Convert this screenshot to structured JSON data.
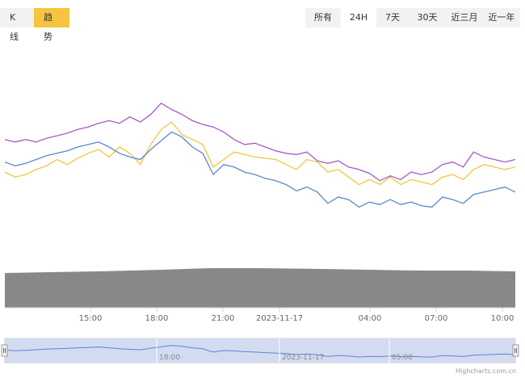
{
  "view_toggle": {
    "kline_label": "K线",
    "trend_label": "趋势",
    "active": "趋势",
    "active_color": "#f5c440"
  },
  "range_selector": {
    "options": [
      "所有",
      "24H",
      "7天",
      "30天",
      "近三月",
      "近一年"
    ],
    "selected": "24H"
  },
  "credit": "Highcharts.com.cn",
  "chart_data": {
    "type": "line",
    "x_ticks": [
      "15:00",
      "18:00",
      "21:00",
      "2023-11-17",
      "04:00",
      "07:00",
      "10:00"
    ],
    "navigator_ticks": [
      "18:00",
      "2023-11-17",
      "05:00"
    ],
    "grid": false,
    "series": [
      {
        "color": "#a559c8",
        "values": [
          0.66,
          0.64,
          0.66,
          0.64,
          0.67,
          0.69,
          0.71,
          0.74,
          0.76,
          0.79,
          0.81,
          0.79,
          0.84,
          0.8,
          0.86,
          0.95,
          0.9,
          0.86,
          0.81,
          0.78,
          0.76,
          0.72,
          0.66,
          0.62,
          0.63,
          0.6,
          0.57,
          0.55,
          0.54,
          0.56,
          0.49,
          0.47,
          0.49,
          0.44,
          0.42,
          0.39,
          0.33,
          0.37,
          0.34,
          0.4,
          0.38,
          0.4,
          0.46,
          0.48,
          0.44,
          0.56,
          0.52,
          0.5,
          0.48,
          0.5
        ]
      },
      {
        "color": "#f5c440",
        "values": [
          0.4,
          0.36,
          0.38,
          0.42,
          0.45,
          0.5,
          0.46,
          0.51,
          0.55,
          0.58,
          0.52,
          0.6,
          0.55,
          0.46,
          0.62,
          0.74,
          0.8,
          0.7,
          0.66,
          0.62,
          0.44,
          0.5,
          0.56,
          0.54,
          0.52,
          0.51,
          0.5,
          0.46,
          0.42,
          0.5,
          0.48,
          0.4,
          0.42,
          0.36,
          0.3,
          0.34,
          0.3,
          0.36,
          0.3,
          0.34,
          0.32,
          0.3,
          0.36,
          0.38,
          0.34,
          0.42,
          0.46,
          0.44,
          0.42,
          0.44
        ]
      },
      {
        "color": "#5b87d0",
        "values": [
          0.48,
          0.45,
          0.47,
          0.5,
          0.53,
          0.55,
          0.57,
          0.6,
          0.62,
          0.64,
          0.6,
          0.55,
          0.52,
          0.5,
          0.58,
          0.65,
          0.72,
          0.68,
          0.6,
          0.55,
          0.38,
          0.46,
          0.44,
          0.4,
          0.38,
          0.35,
          0.33,
          0.3,
          0.25,
          0.28,
          0.24,
          0.15,
          0.2,
          0.18,
          0.12,
          0.16,
          0.14,
          0.18,
          0.14,
          0.16,
          0.13,
          0.12,
          0.2,
          0.18,
          0.15,
          0.22,
          0.24,
          0.26,
          0.28,
          0.24
        ]
      }
    ]
  }
}
